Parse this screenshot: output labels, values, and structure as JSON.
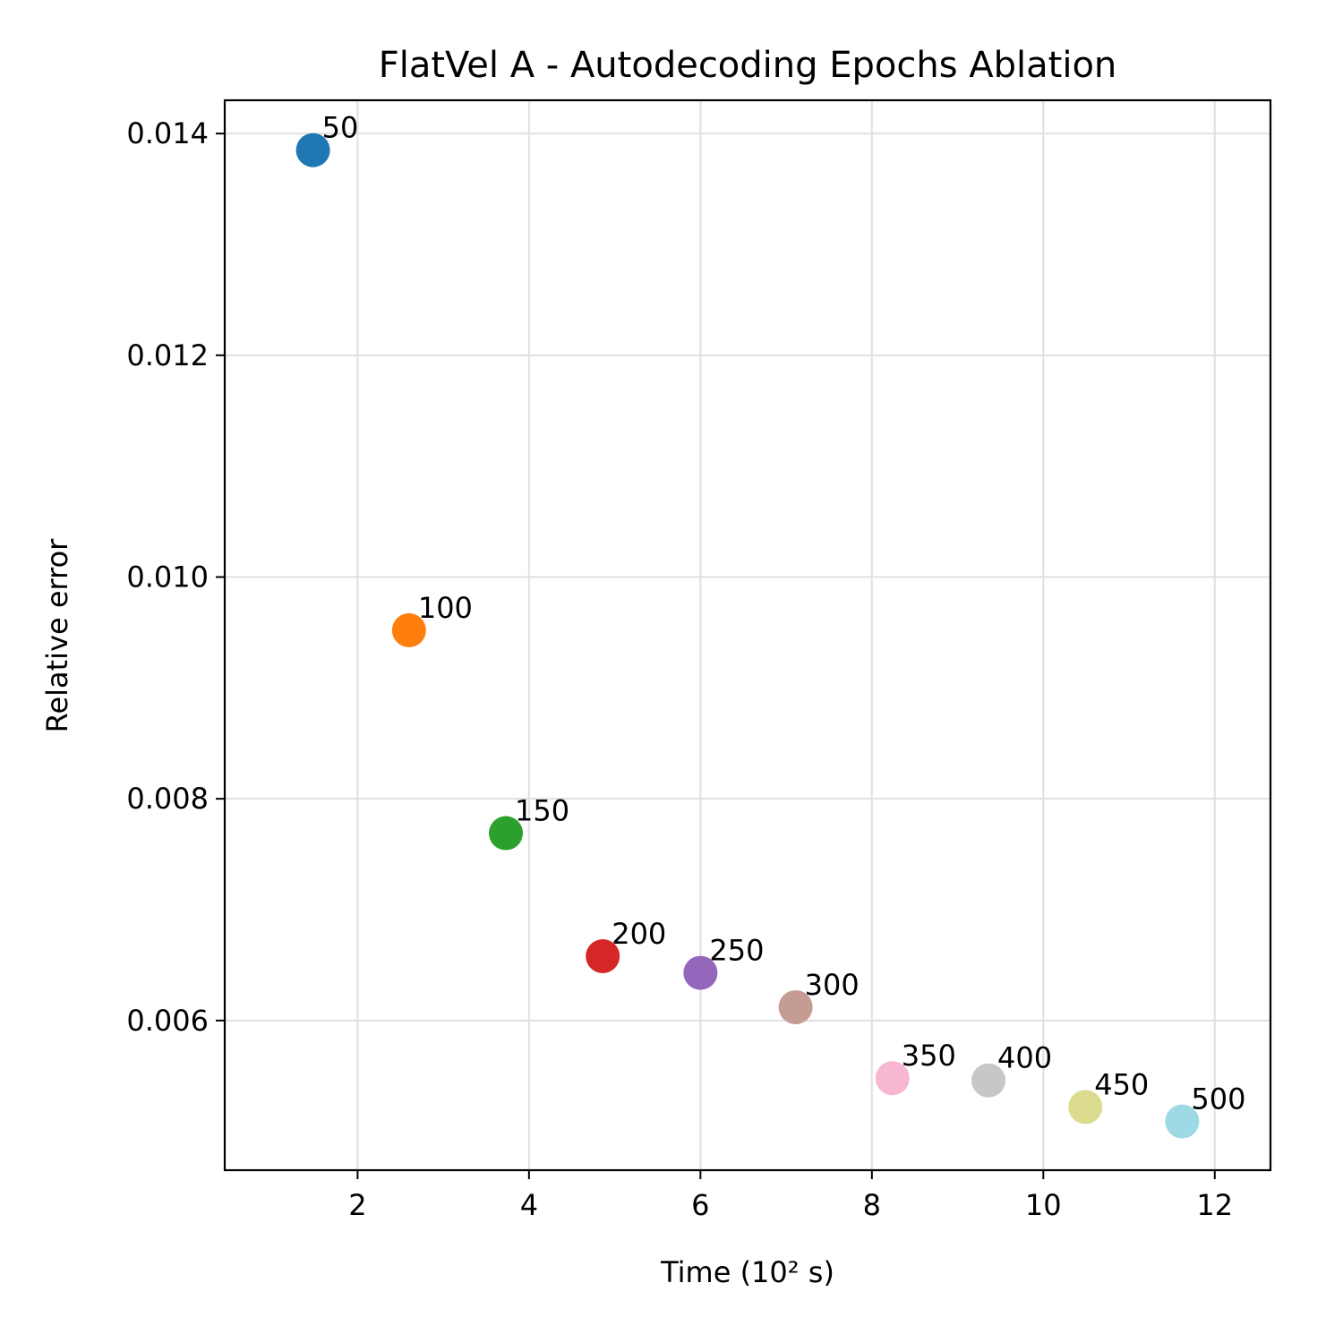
{
  "chart_data": {
    "type": "scatter",
    "title": "FlatVel A - Autodecoding Epochs Ablation",
    "xlabel": "Time (10² s)",
    "ylabel": "Relative error",
    "xlim": [
      0.45,
      12.65
    ],
    "ylim": [
      0.00465,
      0.0143
    ],
    "xticks": [
      2,
      4,
      6,
      8,
      10,
      12
    ],
    "yticks": [
      0.006,
      0.008,
      0.01,
      0.012,
      0.014
    ],
    "ytick_labels": [
      "0.006",
      "0.008",
      "0.010",
      "0.012",
      "0.014"
    ],
    "grid": true,
    "points": [
      {
        "label": "50",
        "x": 1.48,
        "y": 0.01385,
        "color": "#1f77b4"
      },
      {
        "label": "100",
        "x": 2.6,
        "y": 0.00952,
        "color": "#ff7f0e"
      },
      {
        "label": "150",
        "x": 3.73,
        "y": 0.00769,
        "color": "#2ca02c"
      },
      {
        "label": "200",
        "x": 4.86,
        "y": 0.00658,
        "color": "#d62728"
      },
      {
        "label": "250",
        "x": 6.0,
        "y": 0.00643,
        "color": "#9467bd"
      },
      {
        "label": "300",
        "x": 7.11,
        "y": 0.00612,
        "color": "#c49c94"
      },
      {
        "label": "350",
        "x": 8.24,
        "y": 0.00548,
        "color": "#f7b6d2"
      },
      {
        "label": "400",
        "x": 9.36,
        "y": 0.00546,
        "color": "#c7c7c7"
      },
      {
        "label": "450",
        "x": 10.49,
        "y": 0.00522,
        "color": "#dbdb8d"
      },
      {
        "label": "500",
        "x": 11.62,
        "y": 0.00509,
        "color": "#9edae5"
      }
    ]
  }
}
